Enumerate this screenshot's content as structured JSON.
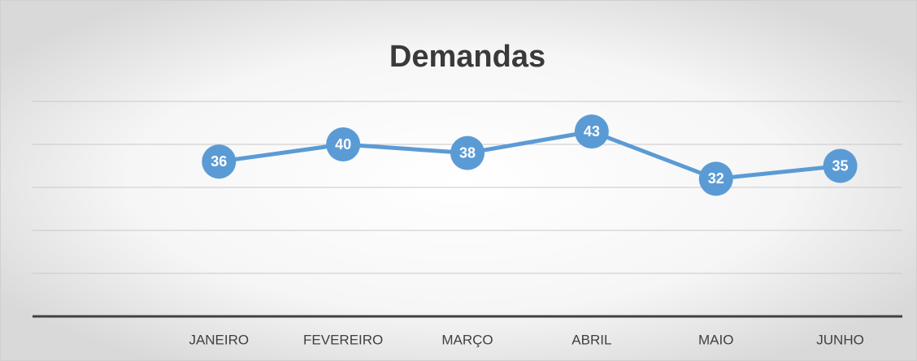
{
  "chart_data": {
    "type": "line",
    "title": "Demandas",
    "categories": [
      null,
      "JANEIRO",
      "FEVEREIRO",
      "MARÇO",
      "ABRIL",
      "MAIO",
      "JUNHO"
    ],
    "values": [
      null,
      36,
      40,
      38,
      43,
      32,
      35
    ],
    "color": "#5b9bd5",
    "ylim": [
      0,
      50
    ],
    "yticks": [
      0,
      10,
      20,
      30,
      40,
      50
    ],
    "grid": true
  }
}
